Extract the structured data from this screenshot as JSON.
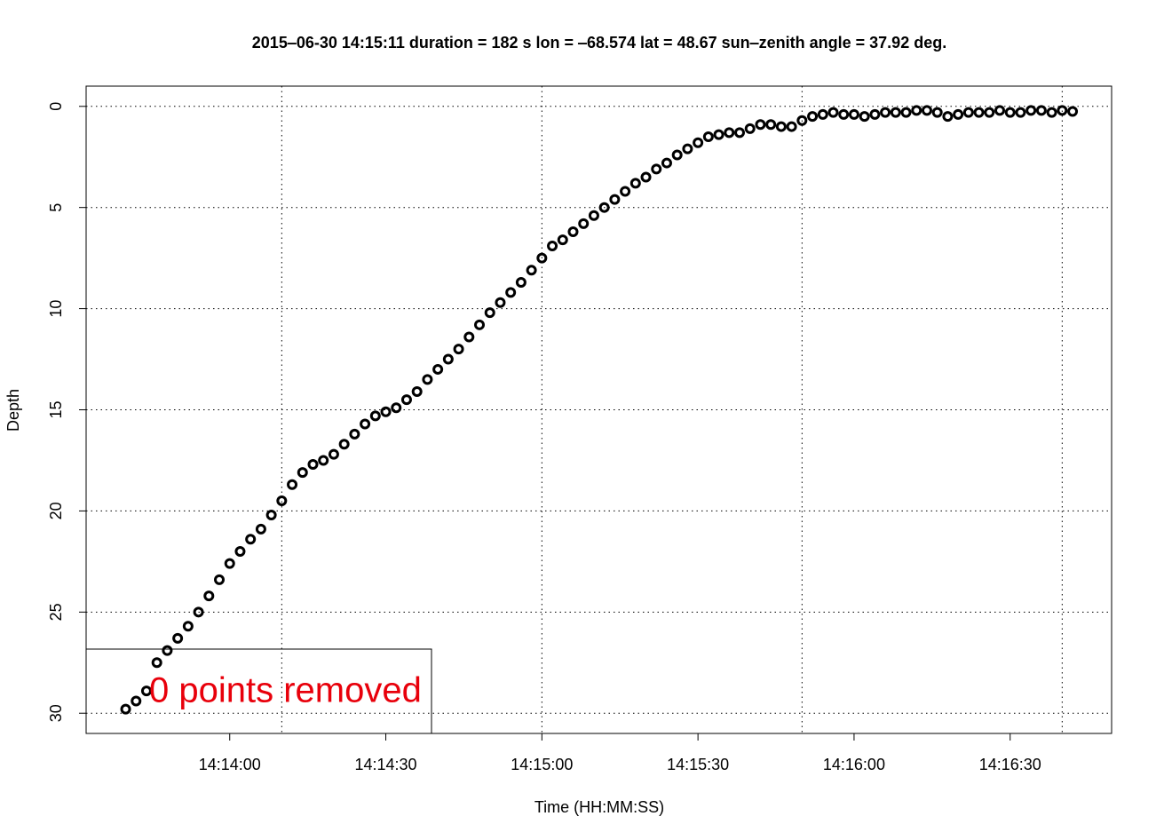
{
  "chart_data": {
    "type": "scatter",
    "title": "2015‒06‑30 14:15:11    duration = 182 s    lon = ‒68.574    lat = 48.67    sun‒zenith angle = 37.92 deg.",
    "x_label": "Time (HH:MM:SS)",
    "y_label": "Depth",
    "annotation": "0 points removed",
    "annotation_color": "#e8000b",
    "xlim": [
      51212.4,
      51409.5
    ],
    "ylim": [
      -1,
      31
    ],
    "y_reversed": true,
    "xticks": [
      {
        "value": 51240,
        "label": "14:14:00"
      },
      {
        "value": 51270,
        "label": "14:14:30"
      },
      {
        "value": 51300,
        "label": "14:15:00"
      },
      {
        "value": 51330,
        "label": "14:15:30"
      },
      {
        "value": 51360,
        "label": "14:16:00"
      },
      {
        "value": 51390,
        "label": "14:16:30"
      }
    ],
    "xgrid": [
      51250,
      51300,
      51350,
      51400
    ],
    "yticks": [
      0,
      5,
      10,
      15,
      20,
      25,
      30
    ],
    "grid": true,
    "color": "#000000",
    "x": [
      51220,
      51222,
      51224,
      51226,
      51228,
      51230,
      51232,
      51234,
      51236,
      51238,
      51240,
      51242,
      51244,
      51246,
      51248,
      51250,
      51252,
      51254,
      51256,
      51258,
      51260,
      51262,
      51264,
      51266,
      51268,
      51270,
      51272,
      51274,
      51276,
      51278,
      51280,
      51282,
      51284,
      51286,
      51288,
      51290,
      51292,
      51294,
      51296,
      51298,
      51300,
      51302,
      51304,
      51306,
      51308,
      51310,
      51312,
      51314,
      51316,
      51318,
      51320,
      51322,
      51324,
      51326,
      51328,
      51330,
      51332,
      51334,
      51336,
      51338,
      51340,
      51342,
      51344,
      51346,
      51348,
      51350,
      51352,
      51354,
      51356,
      51358,
      51360,
      51362,
      51364,
      51366,
      51368,
      51370,
      51372,
      51374,
      51376,
      51378,
      51380,
      51382,
      51384,
      51386,
      51388,
      51390,
      51392,
      51394,
      51396,
      51398,
      51400,
      51402
    ],
    "values": [
      29.8,
      29.4,
      28.9,
      27.5,
      26.9,
      26.3,
      25.7,
      25.0,
      24.2,
      23.4,
      22.6,
      22.0,
      21.4,
      20.9,
      20.2,
      19.5,
      18.7,
      18.1,
      17.7,
      17.5,
      17.2,
      16.7,
      16.2,
      15.7,
      15.3,
      15.1,
      14.9,
      14.5,
      14.1,
      13.5,
      13.0,
      12.5,
      12.0,
      11.4,
      10.8,
      10.2,
      9.7,
      9.2,
      8.7,
      8.1,
      7.5,
      6.9,
      6.6,
      6.2,
      5.8,
      5.4,
      5.0,
      4.6,
      4.2,
      3.8,
      3.5,
      3.1,
      2.8,
      2.4,
      2.1,
      1.8,
      1.5,
      1.4,
      1.3,
      1.3,
      1.1,
      0.9,
      0.9,
      1.0,
      1.0,
      0.7,
      0.5,
      0.4,
      0.3,
      0.4,
      0.4,
      0.5,
      0.4,
      0.3,
      0.3,
      0.3,
      0.2,
      0.2,
      0.3,
      0.5,
      0.4,
      0.3,
      0.3,
      0.3,
      0.2,
      0.3,
      0.3,
      0.2,
      0.2,
      0.3,
      0.2,
      0.25
    ]
  }
}
